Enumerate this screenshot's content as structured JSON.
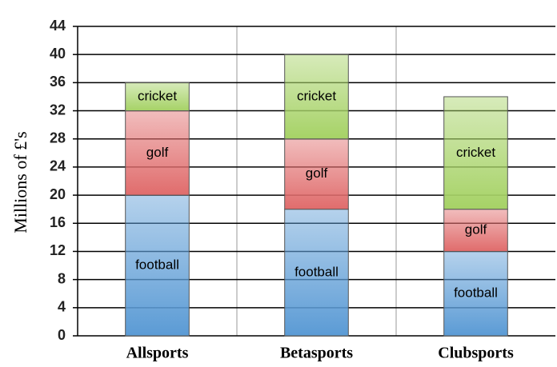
{
  "chart_data": {
    "type": "stacked_bar",
    "categories": [
      "Allsports",
      "Betasports",
      "Clubsports"
    ],
    "series": [
      {
        "name": "football",
        "color": "#5b9bd5",
        "values": [
          20,
          18,
          12
        ]
      },
      {
        "name": "golf",
        "color": "#e06c6c",
        "values": [
          12,
          10,
          6
        ]
      },
      {
        "name": "cricket",
        "color": "#a6d266",
        "values": [
          4,
          12,
          16
        ]
      }
    ],
    "ylabel": "Millions of £'s",
    "ylim": [
      0,
      44
    ],
    "yticks": [
      0,
      4,
      8,
      12,
      16,
      20,
      24,
      28,
      32,
      36,
      40,
      44
    ],
    "grid": true
  }
}
